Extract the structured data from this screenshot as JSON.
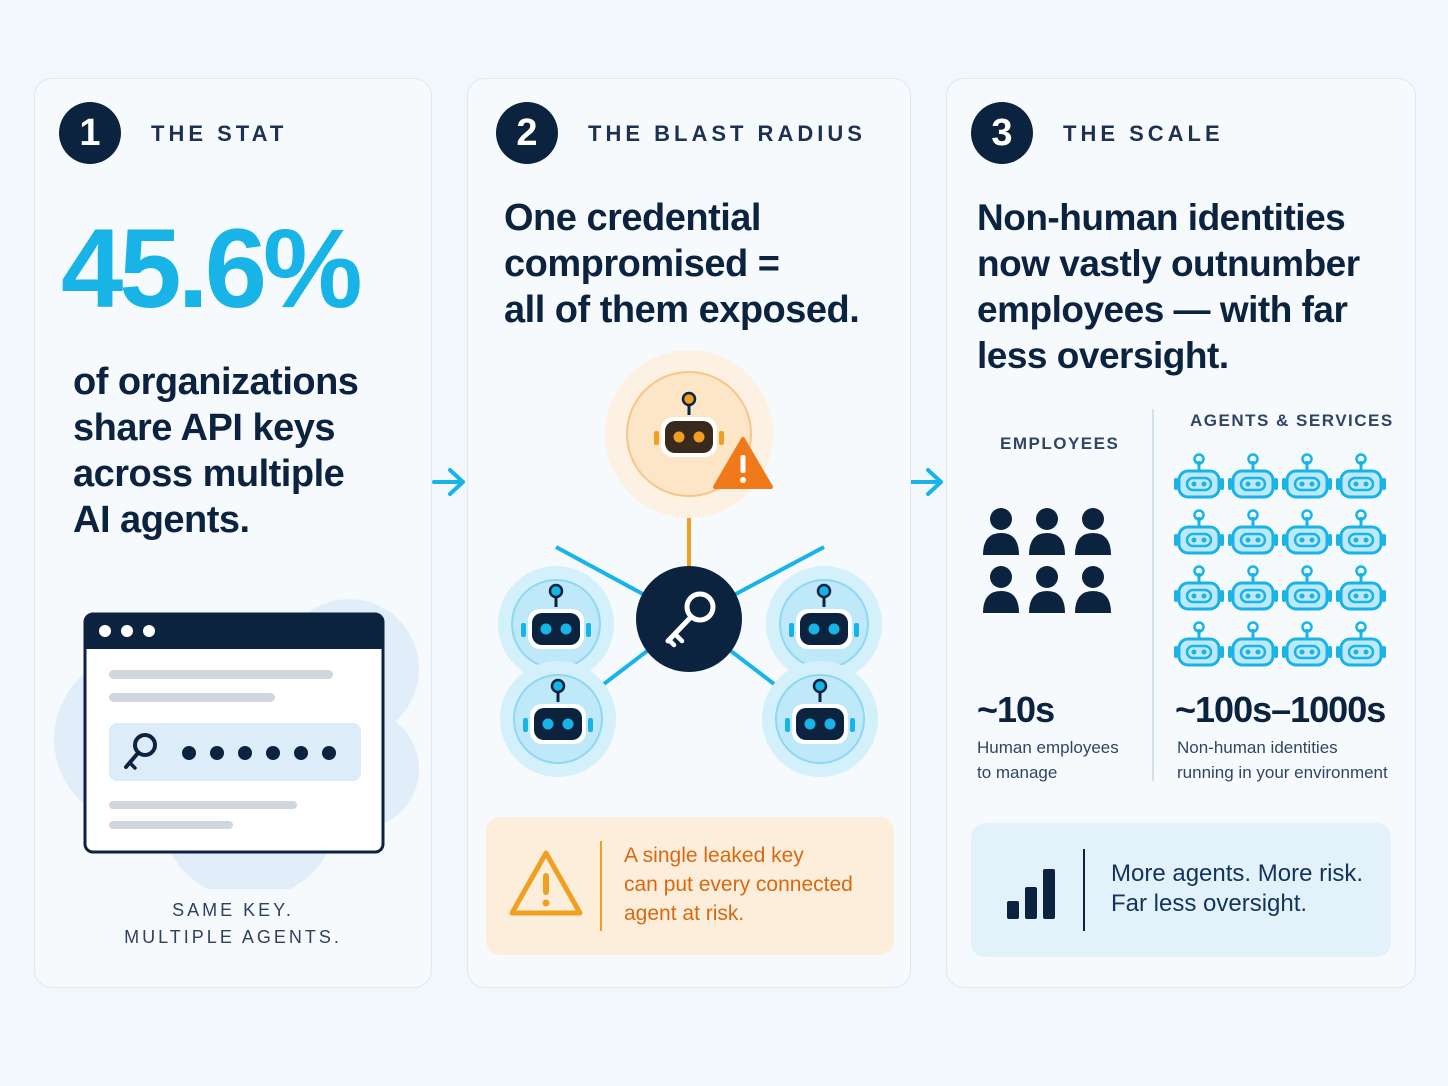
{
  "panels": [
    {
      "number": "1",
      "kicker": "THE STAT",
      "stat": "45.6%",
      "headline_lines": [
        "of organizations",
        "share API keys",
        "across multiple",
        "AI agents."
      ],
      "caption_lines": [
        "SAME KEY.",
        "MULTIPLE AGENTS."
      ],
      "icons": [
        "browser-window-icon",
        "key-icon",
        "password-dots-icon"
      ]
    },
    {
      "number": "2",
      "kicker": "THE BLAST RADIUS",
      "headline_lines": [
        "One credential",
        "compromised =",
        "all of them exposed."
      ],
      "callout_lines": [
        "A single leaked key",
        "can put every connected",
        "agent at risk."
      ],
      "icons": [
        "robot-icon",
        "warning-icon",
        "key-icon"
      ]
    },
    {
      "number": "3",
      "kicker": "THE SCALE",
      "headline_lines": [
        "Non-human identities",
        "now vastly outnumber",
        "employees — with far",
        "less oversight."
      ],
      "employees": {
        "label": "EMPLOYEES",
        "count": "~10s",
        "desc_lines": [
          "Human employees",
          "to manage"
        ],
        "icon_count": 6
      },
      "agents": {
        "label": "AGENTS & SERVICES",
        "count": "~100s–1000s",
        "desc_lines": [
          "Non-human identities",
          "running in your environment"
        ],
        "icon_count": 16
      },
      "summary_lines": [
        "More agents. More risk.",
        "Far less oversight."
      ],
      "icons": [
        "person-icon",
        "robot-icon",
        "bar-chart-icon"
      ]
    }
  ],
  "colors": {
    "navy": "#0c2340",
    "cyan": "#18b4e8",
    "orange": "#f07a1a",
    "orange_text": "#d9690f",
    "light_blue": "#bfe9f8"
  }
}
